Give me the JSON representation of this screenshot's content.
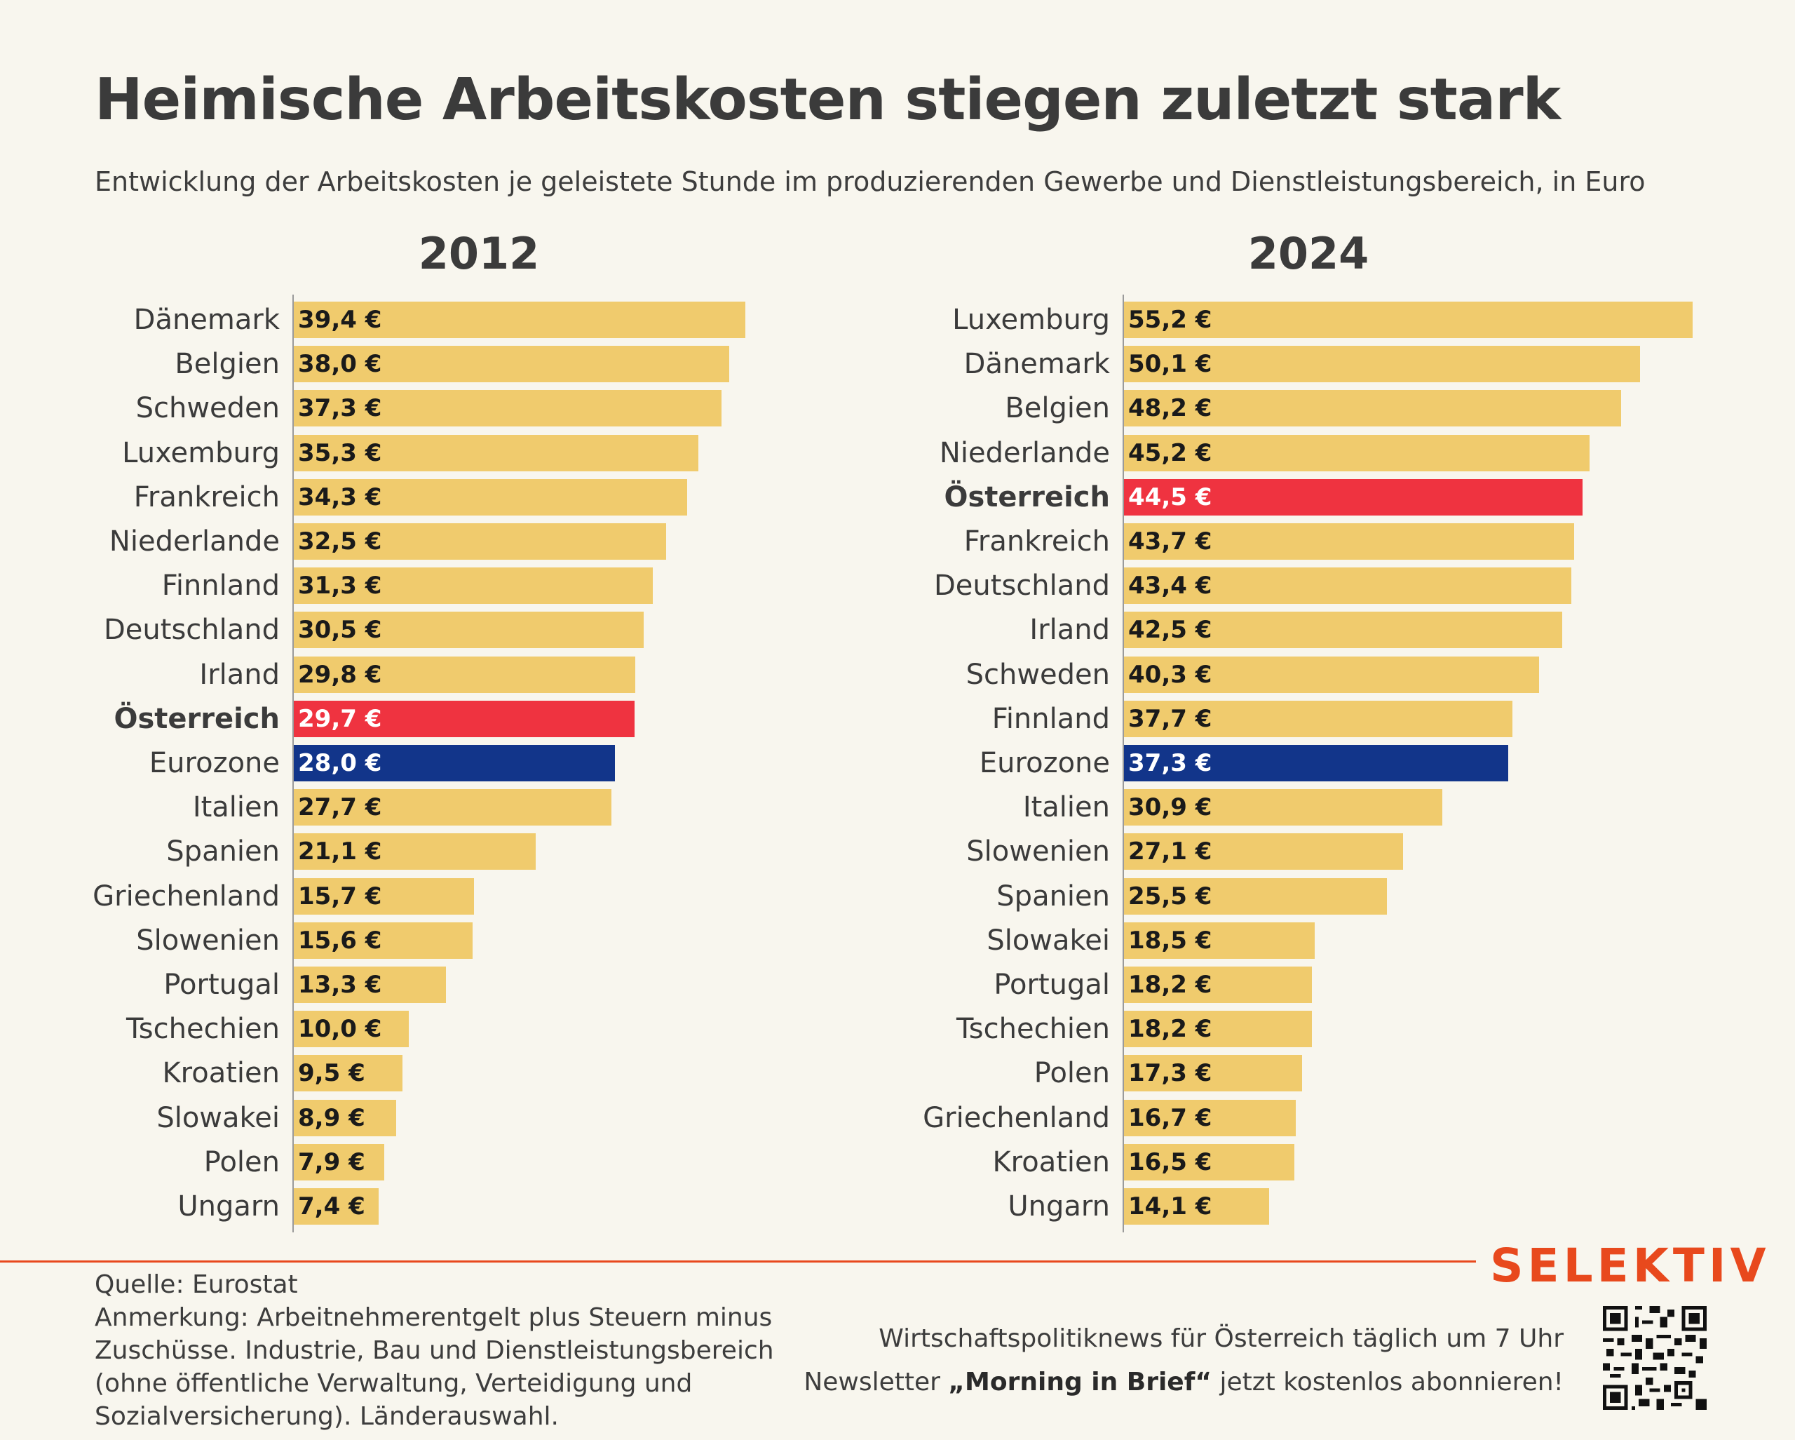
{
  "title": "Heimische Arbeitskosten stiegen zuletzt stark",
  "subtitle": "Entwicklung der Arbeitskosten je geleistete Stunde im produzierenden Gewerbe und Dienstleistungsbereich, in Euro",
  "colors": {
    "default": "#f0cb6d",
    "austria": "#ef3340",
    "eurozone": "#12358a",
    "accent": "#e8491d"
  },
  "chart_data": [
    {
      "type": "bar",
      "orientation": "horizontal",
      "title": "2012",
      "unit": "€",
      "categories": [
        "Dänemark",
        "Belgien",
        "Schweden",
        "Luxemburg",
        "Frankreich",
        "Niederlande",
        "Finnland",
        "Deutschland",
        "Irland",
        "Österreich",
        "Eurozone",
        "Italien",
        "Spanien",
        "Griechenland",
        "Slowenien",
        "Portugal",
        "Tschechien",
        "Kroatien",
        "Slowakei",
        "Polen",
        "Ungarn"
      ],
      "values": [
        39.4,
        38.0,
        37.3,
        35.3,
        34.3,
        32.5,
        31.3,
        30.5,
        29.8,
        29.7,
        28.0,
        27.7,
        21.1,
        15.7,
        15.6,
        13.3,
        10.0,
        9.5,
        8.9,
        7.9,
        7.4
      ],
      "value_labels": [
        "39,4 €",
        "38,0 €",
        "37,3 €",
        "35,3 €",
        "34,3 €",
        "32,5 €",
        "31,3 €",
        "30,5 €",
        "29,8 €",
        "29,7 €",
        "28,0 €",
        "27,7 €",
        "21,1 €",
        "15,7 €",
        "15,6 €",
        "13,3 €",
        "10,0 €",
        "9,5 €",
        "8,9 €",
        "7,9 €",
        "7,4 €"
      ],
      "highlight": {
        "Österreich": "austria",
        "Eurozone": "eurozone"
      }
    },
    {
      "type": "bar",
      "orientation": "horizontal",
      "title": "2024",
      "unit": "€",
      "categories": [
        "Luxemburg",
        "Dänemark",
        "Belgien",
        "Niederlande",
        "Österreich",
        "Frankreich",
        "Deutschland",
        "Irland",
        "Schweden",
        "Finnland",
        "Eurozone",
        "Italien",
        "Slowenien",
        "Spanien",
        "Slowakei",
        "Portugal",
        "Tschechien",
        "Polen",
        "Griechenland",
        "Kroatien",
        "Ungarn"
      ],
      "values": [
        55.2,
        50.1,
        48.2,
        45.2,
        44.5,
        43.7,
        43.4,
        42.5,
        40.3,
        37.7,
        37.3,
        30.9,
        27.1,
        25.5,
        18.5,
        18.2,
        18.2,
        17.3,
        16.7,
        16.5,
        14.1
      ],
      "value_labels": [
        "55,2 €",
        "50,1 €",
        "48,2 €",
        "45,2 €",
        "44,5 €",
        "43,7 €",
        "43,4 €",
        "42,5 €",
        "40,3 €",
        "37,7 €",
        "37,3 €",
        "30,9 €",
        "27,1 €",
        "25,5 €",
        "18,5 €",
        "18,2 €",
        "18,2 €",
        "17,3 €",
        "16,7 €",
        "16,5 €",
        "14,1 €"
      ],
      "highlight": {
        "Österreich": "austria",
        "Eurozone": "eurozone"
      }
    }
  ],
  "footer": {
    "source": "Quelle: Eurostat",
    "note": "Anmerkung: Arbeitnehmerentgelt plus Steuern minus Zuschüsse. Industrie, Bau und Dienstleistungsbereich (ohne öffentliche Verwaltung, Verteidigung und Sozialversicherung). Länderauswahl.",
    "brand": "SELEKTIV",
    "promo_line1": "Wirtschaftspolitiknews für Österreich täglich um 7 Uhr",
    "promo_line2_before": "Newsletter ",
    "promo_line2_bold": "„Morning in Brief“",
    "promo_line2_after": " jetzt kostenlos abonnieren!"
  }
}
